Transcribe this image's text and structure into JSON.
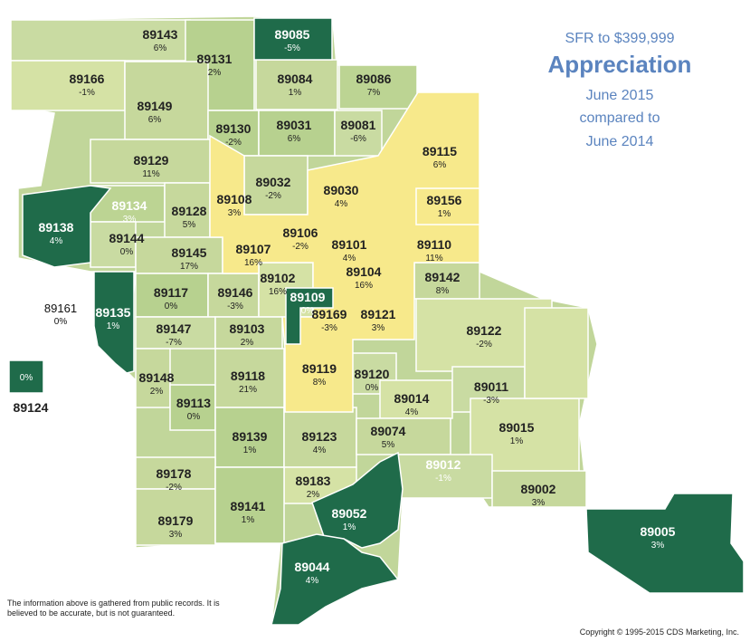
{
  "legend": {
    "subtitle": "SFR to $399,999",
    "title": "Appreciation",
    "period_1": "June 2015",
    "compared_text": "compared to",
    "period_2": "June 2014"
  },
  "colors": {
    "yellow": "#f7e98b",
    "pale_green": "#d5e2a5",
    "light_green": "#c1d69a",
    "medium_green": "#a8c98f",
    "dark_green": "#1f6b4a",
    "border": "#ffffff"
  },
  "zips": [
    {
      "zip": "89143",
      "pct": "6%"
    },
    {
      "zip": "89085",
      "pct": "-5%"
    },
    {
      "zip": "89131",
      "pct": "2%"
    },
    {
      "zip": "89166",
      "pct": "-1%"
    },
    {
      "zip": "89084",
      "pct": "1%"
    },
    {
      "zip": "89086",
      "pct": "7%"
    },
    {
      "zip": "89149",
      "pct": "6%"
    },
    {
      "zip": "89130",
      "pct": "-2%"
    },
    {
      "zip": "89031",
      "pct": "6%"
    },
    {
      "zip": "89081",
      "pct": "-6%"
    },
    {
      "zip": "89115",
      "pct": "6%"
    },
    {
      "zip": "89129",
      "pct": "11%"
    },
    {
      "zip": "89032",
      "pct": "-2%"
    },
    {
      "zip": "89030",
      "pct": "4%"
    },
    {
      "zip": "89156",
      "pct": "1%"
    },
    {
      "zip": "89134",
      "pct": "3%"
    },
    {
      "zip": "89128",
      "pct": "5%"
    },
    {
      "zip": "89108",
      "pct": "3%"
    },
    {
      "zip": "89138",
      "pct": "4%"
    },
    {
      "zip": "89144",
      "pct": "0%"
    },
    {
      "zip": "89106",
      "pct": "-2%"
    },
    {
      "zip": "89101",
      "pct": "4%"
    },
    {
      "zip": "89110",
      "pct": "11%"
    },
    {
      "zip": "89145",
      "pct": "17%"
    },
    {
      "zip": "89107",
      "pct": "16%"
    },
    {
      "zip": "89104",
      "pct": "16%"
    },
    {
      "zip": "89142",
      "pct": "8%"
    },
    {
      "zip": "89117",
      "pct": "0%"
    },
    {
      "zip": "89146",
      "pct": "-3%"
    },
    {
      "zip": "89102",
      "pct": "16%"
    },
    {
      "zip": "89109",
      "pct": "0%"
    },
    {
      "zip": "89169",
      "pct": "-3%"
    },
    {
      "zip": "89121",
      "pct": "3%"
    },
    {
      "zip": "89135",
      "pct": "1%"
    },
    {
      "zip": "89122",
      "pct": "-2%"
    },
    {
      "zip": "89147",
      "pct": "-7%"
    },
    {
      "zip": "89103",
      "pct": "2%"
    },
    {
      "zip": "89119",
      "pct": "8%"
    },
    {
      "zip": "89148",
      "pct": "2%"
    },
    {
      "zip": "89118",
      "pct": "21%"
    },
    {
      "zip": "89120",
      "pct": "0%"
    },
    {
      "zip": "89011",
      "pct": "-3%"
    },
    {
      "zip": "89113",
      "pct": "0%"
    },
    {
      "zip": "89014",
      "pct": "4%"
    },
    {
      "zip": "89139",
      "pct": "1%"
    },
    {
      "zip": "89123",
      "pct": "4%"
    },
    {
      "zip": "89074",
      "pct": "5%"
    },
    {
      "zip": "89015",
      "pct": "1%"
    },
    {
      "zip": "89012",
      "pct": "-1%"
    },
    {
      "zip": "89178",
      "pct": "-2%"
    },
    {
      "zip": "89183",
      "pct": "2%"
    },
    {
      "zip": "89002",
      "pct": "3%"
    },
    {
      "zip": "89052",
      "pct": "1%"
    },
    {
      "zip": "89179",
      "pct": "3%"
    },
    {
      "zip": "89141",
      "pct": "1%"
    },
    {
      "zip": "89005",
      "pct": "3%"
    },
    {
      "zip": "89044",
      "pct": "4%"
    }
  ],
  "outside": {
    "z89161": {
      "zip": "89161",
      "pct": "0%"
    },
    "z89124": {
      "zip": "89124",
      "pct": "0%"
    }
  },
  "disclaimer": "The information above is gathered from public records.  It is believed to be accurate, but is not guaranteed.",
  "copyright": "Copyright © 1995-2015 CDS Marketing, Inc."
}
